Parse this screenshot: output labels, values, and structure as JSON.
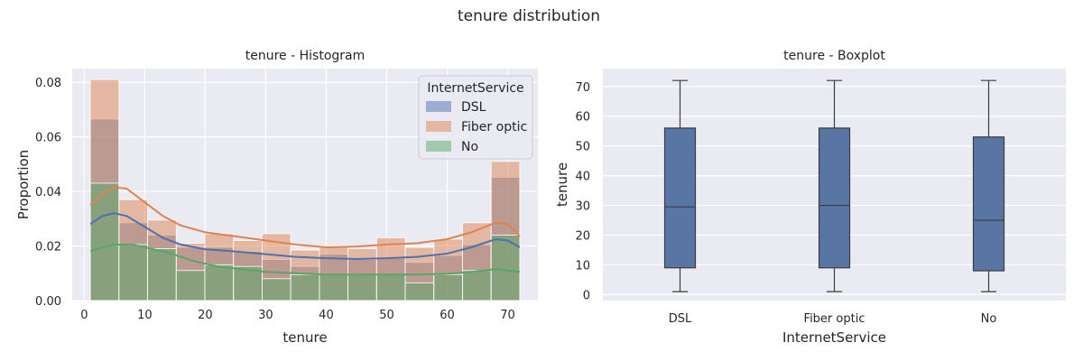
{
  "figure": {
    "title": "tenure distribution"
  },
  "chart_data": [
    {
      "type": "histogram",
      "title": "tenure - Histogram",
      "xlabel": "tenure",
      "ylabel": "Proportion",
      "xlim": [
        -2,
        75
      ],
      "ylim": [
        0,
        0.085
      ],
      "xticks": [
        0,
        10,
        20,
        30,
        40,
        50,
        60,
        70
      ],
      "yticks": [
        0.0,
        0.02,
        0.04,
        0.06,
        0.08
      ],
      "ytick_labels": [
        "0.00",
        "0.02",
        "0.04",
        "0.06",
        "0.08"
      ],
      "grid": true,
      "legend": {
        "title": "InternetService",
        "placement": "top-right"
      },
      "bin_edges": [
        1,
        5.73,
        10.47,
        15.2,
        19.93,
        24.67,
        29.4,
        34.13,
        38.87,
        43.6,
        48.33,
        53.07,
        57.8,
        62.53,
        67.27,
        72
      ],
      "series": [
        {
          "name": "DSL",
          "color": "#4c72b0",
          "values": [
            0.0665,
            0.0285,
            0.024,
            0.0195,
            0.0195,
            0.018,
            0.015,
            0.0125,
            0.017,
            0.015,
            0.0155,
            0.014,
            0.0165,
            0.0205,
            0.0452
          ],
          "kde": [
            [
              1,
              0.028
            ],
            [
              3,
              0.031
            ],
            [
              5,
              0.032
            ],
            [
              7,
              0.031
            ],
            [
              10,
              0.027
            ],
            [
              13,
              0.023
            ],
            [
              16,
              0.0205
            ],
            [
              20,
              0.0188
            ],
            [
              25,
              0.018
            ],
            [
              30,
              0.017
            ],
            [
              35,
              0.016
            ],
            [
              40,
              0.0155
            ],
            [
              45,
              0.0152
            ],
            [
              50,
              0.0155
            ],
            [
              55,
              0.016
            ],
            [
              60,
              0.0172
            ],
            [
              64,
              0.0195
            ],
            [
              68,
              0.0225
            ],
            [
              70,
              0.022
            ],
            [
              72,
              0.0195
            ]
          ]
        },
        {
          "name": "Fiber optic",
          "color": "#dd8452",
          "values": [
            0.081,
            0.037,
            0.0295,
            0.021,
            0.0245,
            0.022,
            0.0245,
            0.0185,
            0.0195,
            0.019,
            0.023,
            0.0195,
            0.0225,
            0.0285,
            0.051
          ],
          "kde": [
            [
              1,
              0.035
            ],
            [
              3,
              0.039
            ],
            [
              5,
              0.0415
            ],
            [
              7,
              0.041
            ],
            [
              10,
              0.036
            ],
            [
              13,
              0.031
            ],
            [
              16,
              0.0275
            ],
            [
              20,
              0.025
            ],
            [
              25,
              0.0235
            ],
            [
              30,
              0.022
            ],
            [
              35,
              0.0205
            ],
            [
              40,
              0.0195
            ],
            [
              45,
              0.0198
            ],
            [
              50,
              0.0205
            ],
            [
              55,
              0.021
            ],
            [
              60,
              0.0225
            ],
            [
              64,
              0.025
            ],
            [
              68,
              0.0285
            ],
            [
              70,
              0.028
            ],
            [
              72,
              0.0235
            ]
          ]
        },
        {
          "name": "No",
          "color": "#55a868",
          "values": [
            0.043,
            0.0205,
            0.019,
            0.011,
            0.013,
            0.0125,
            0.008,
            0.0095,
            0.0095,
            0.0095,
            0.0095,
            0.0065,
            0.0095,
            0.011,
            0.024
          ],
          "kde": [
            [
              1,
              0.018
            ],
            [
              3,
              0.0195
            ],
            [
              5,
              0.0205
            ],
            [
              8,
              0.0205
            ],
            [
              10,
              0.0195
            ],
            [
              14,
              0.0175
            ],
            [
              18,
              0.0145
            ],
            [
              22,
              0.0125
            ],
            [
              26,
              0.0115
            ],
            [
              30,
              0.0105
            ],
            [
              35,
              0.01
            ],
            [
              40,
              0.0095
            ],
            [
              45,
              0.0095
            ],
            [
              50,
              0.0095
            ],
            [
              55,
              0.0095
            ],
            [
              60,
              0.0098
            ],
            [
              64,
              0.0105
            ],
            [
              68,
              0.0115
            ],
            [
              72,
              0.0105
            ]
          ]
        }
      ]
    },
    {
      "type": "boxplot",
      "title": "tenure - Boxplot",
      "xlabel": "InternetService",
      "ylabel": "tenure",
      "ylim": [
        -2,
        76
      ],
      "yticks": [
        0,
        10,
        20,
        30,
        40,
        50,
        60,
        70
      ],
      "grid": true,
      "categories": [
        "DSL",
        "Fiber optic",
        "No"
      ],
      "color": "#5975a4",
      "boxes": [
        {
          "min": 1,
          "q1": 9,
          "median": 29.5,
          "q3": 56,
          "max": 72
        },
        {
          "min": 1,
          "q1": 9,
          "median": 30,
          "q3": 56,
          "max": 72
        },
        {
          "min": 1,
          "q1": 8,
          "median": 25,
          "q3": 53,
          "max": 72
        }
      ]
    }
  ]
}
